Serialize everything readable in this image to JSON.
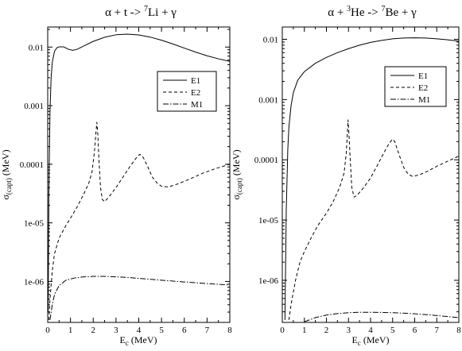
{
  "chart_data": [
    {
      "type": "line",
      "title": {
        "pre": "α  + t -> ",
        "sup": "7",
        "post": "Li + γ"
      },
      "xlabel": {
        "main": "E",
        "sub": "c",
        "rest": " (MeV)"
      },
      "ylabel": {
        "main": "σ",
        "sub": "(capt)",
        "rest": " (MeV)"
      },
      "xlim": [
        0,
        8
      ],
      "ylim": [
        2e-07,
        0.022
      ],
      "yscale": "log",
      "grid": false,
      "legend_position": "upper-right",
      "x_ticks": [
        0,
        1,
        2,
        3,
        4,
        5,
        6,
        7,
        8
      ],
      "y_ticks": [
        {
          "v": 0.01,
          "label": "0.01"
        },
        {
          "v": 0.001,
          "label": "0.001"
        },
        {
          "v": 0.0001,
          "label": "0.0001"
        },
        {
          "v": 1e-05,
          "label": "1e-05"
        },
        {
          "v": 1e-06,
          "label": "1e-06"
        }
      ],
      "series": [
        {
          "name": "E1",
          "dash": "solid",
          "points": [
            [
              0.02,
              3e-07
            ],
            [
              0.05,
              3e-05
            ],
            [
              0.1,
              0.0008
            ],
            [
              0.15,
              0.003
            ],
            [
              0.2,
              0.0055
            ],
            [
              0.3,
              0.0085
            ],
            [
              0.4,
              0.0097
            ],
            [
              0.5,
              0.0101
            ],
            [
              0.7,
              0.0101
            ],
            [
              0.9,
              0.0092
            ],
            [
              1.1,
              0.0088
            ],
            [
              1.3,
              0.0092
            ],
            [
              1.6,
              0.0105
            ],
            [
              2.0,
              0.0125
            ],
            [
              2.5,
              0.0147
            ],
            [
              3.0,
              0.0162
            ],
            [
              3.5,
              0.0166
            ],
            [
              4.0,
              0.0161
            ],
            [
              4.5,
              0.0148
            ],
            [
              5.0,
              0.0131
            ],
            [
              5.5,
              0.0113
            ],
            [
              6.0,
              0.0096
            ],
            [
              6.5,
              0.0082
            ],
            [
              7.0,
              0.0071
            ],
            [
              7.5,
              0.0063
            ],
            [
              8.0,
              0.0057
            ]
          ]
        },
        {
          "name": "E2",
          "dash": "dashed",
          "points": [
            [
              0.05,
              2.2e-07
            ],
            [
              0.1,
              5e-07
            ],
            [
              0.2,
              1.5e-06
            ],
            [
              0.3,
              3e-06
            ],
            [
              0.5,
              5.5e-06
            ],
            [
              0.8,
              9e-06
            ],
            [
              1.0,
              1.2e-05
            ],
            [
              1.3,
              1.9e-05
            ],
            [
              1.6,
              3.2e-05
            ],
            [
              1.8,
              4.7e-05
            ],
            [
              1.95,
              7.5e-05
            ],
            [
              2.05,
              0.00016
            ],
            [
              2.12,
              0.00035
            ],
            [
              2.16,
              0.00052
            ],
            [
              2.2,
              0.00033
            ],
            [
              2.25,
              0.00012
            ],
            [
              2.32,
              4e-05
            ],
            [
              2.4,
              2.5e-05
            ],
            [
              2.5,
              2.3e-05
            ],
            [
              2.7,
              2.8e-05
            ],
            [
              3.0,
              4e-05
            ],
            [
              3.3,
              6e-05
            ],
            [
              3.6,
              9e-05
            ],
            [
              3.9,
              0.00013
            ],
            [
              4.05,
              0.000148
            ],
            [
              4.2,
              0.00013
            ],
            [
              4.4,
              9e-05
            ],
            [
              4.6,
              6e-05
            ],
            [
              4.8,
              4.8e-05
            ],
            [
              5.0,
              4.2e-05
            ],
            [
              5.3,
              4.1e-05
            ],
            [
              5.7,
              4.6e-05
            ],
            [
              6.2,
              5.5e-05
            ],
            [
              6.8,
              7e-05
            ],
            [
              7.4,
              8.5e-05
            ],
            [
              8.0,
              0.0001
            ]
          ]
        },
        {
          "name": "M1",
          "dash": "dashdot",
          "points": [
            [
              0.1,
              2.2e-07
            ],
            [
              0.2,
              4e-07
            ],
            [
              0.3,
              6e-07
            ],
            [
              0.5,
              8.5e-07
            ],
            [
              0.8,
              1.05e-06
            ],
            [
              1.2,
              1.15e-06
            ],
            [
              1.6,
              1.2e-06
            ],
            [
              2.0,
              1.22e-06
            ],
            [
              2.5,
              1.22e-06
            ],
            [
              3.0,
              1.2e-06
            ],
            [
              3.5,
              1.17e-06
            ],
            [
              4.0,
              1.13e-06
            ],
            [
              5.0,
              1.05e-06
            ],
            [
              6.0,
              9.8e-07
            ],
            [
              7.0,
              9.2e-07
            ],
            [
              8.0,
              8.7e-07
            ]
          ]
        }
      ]
    },
    {
      "type": "line",
      "title": {
        "pre": "α  + ",
        "sup1": "3",
        "mid": "He -> ",
        "sup": "7",
        "post": "Be + γ"
      },
      "xlabel": {
        "main": "E",
        "sub": "c",
        "rest": " (MeV)"
      },
      "ylabel": {
        "main": "σ",
        "sub": "(capt)",
        "rest": " (MeV)"
      },
      "xlim": [
        0,
        8
      ],
      "ylim": [
        2e-07,
        0.016
      ],
      "yscale": "log",
      "grid": false,
      "legend_position": "upper-right",
      "x_ticks": [
        0,
        1,
        2,
        3,
        4,
        5,
        6,
        7,
        8
      ],
      "y_ticks": [
        {
          "v": 0.01,
          "label": "0.01"
        },
        {
          "v": 0.001,
          "label": "0.001"
        },
        {
          "v": 0.0001,
          "label": "0.0001"
        },
        {
          "v": 1e-05,
          "label": "1e-05"
        },
        {
          "v": 1e-06,
          "label": "1e-06"
        }
      ],
      "series": [
        {
          "name": "E1",
          "dash": "solid",
          "points": [
            [
              0.12,
              2.2e-07
            ],
            [
              0.18,
              1.5e-05
            ],
            [
              0.25,
              0.00015
            ],
            [
              0.3,
              0.00035
            ],
            [
              0.4,
              0.0008
            ],
            [
              0.5,
              0.0013
            ],
            [
              0.7,
              0.0021
            ],
            [
              1.0,
              0.0029
            ],
            [
              1.5,
              0.004
            ],
            [
              2.0,
              0.005
            ],
            [
              2.5,
              0.006
            ],
            [
              3.0,
              0.007
            ],
            [
              3.5,
              0.008
            ],
            [
              4.0,
              0.0089
            ],
            [
              4.5,
              0.0096
            ],
            [
              5.0,
              0.0102
            ],
            [
              5.5,
              0.0105
            ],
            [
              6.0,
              0.0106
            ],
            [
              6.5,
              0.0105
            ],
            [
              7.0,
              0.0102
            ],
            [
              7.5,
              0.0098
            ],
            [
              8.0,
              0.0093
            ]
          ]
        },
        {
          "name": "E2",
          "dash": "dashed",
          "points": [
            [
              0.3,
              2.2e-07
            ],
            [
              0.4,
              4e-07
            ],
            [
              0.6,
              1e-06
            ],
            [
              0.8,
              2e-06
            ],
            [
              1.0,
              3e-06
            ],
            [
              1.3,
              5e-06
            ],
            [
              1.6,
              8e-06
            ],
            [
              2.0,
              1.3e-05
            ],
            [
              2.3,
              2e-05
            ],
            [
              2.6,
              3.5e-05
            ],
            [
              2.8,
              6e-05
            ],
            [
              2.9,
              0.00013
            ],
            [
              2.95,
              0.00028
            ],
            [
              2.98,
              0.00046
            ],
            [
              3.02,
              0.00027
            ],
            [
              3.08,
              0.0001
            ],
            [
              3.15,
              3.5e-05
            ],
            [
              3.25,
              2.4e-05
            ],
            [
              3.4,
              2.6e-05
            ],
            [
              3.7,
              3.5e-05
            ],
            [
              4.0,
              5e-05
            ],
            [
              4.3,
              8e-05
            ],
            [
              4.6,
              0.00013
            ],
            [
              4.85,
              0.00019
            ],
            [
              5.0,
              0.00022
            ],
            [
              5.1,
              0.0002
            ],
            [
              5.3,
              0.00012
            ],
            [
              5.5,
              7.5e-05
            ],
            [
              5.7,
              5.8e-05
            ],
            [
              5.9,
              5.3e-05
            ],
            [
              6.2,
              5.6e-05
            ],
            [
              6.6,
              6.5e-05
            ],
            [
              7.0,
              7.8e-05
            ],
            [
              7.5,
              9.5e-05
            ],
            [
              8.0,
              0.000115
            ]
          ]
        },
        {
          "name": "M1",
          "dash": "dashdot",
          "points": [
            [
              1.0,
              2.05e-07
            ],
            [
              1.5,
              2.4e-07
            ],
            [
              2.0,
              2.65e-07
            ],
            [
              2.5,
              2.8e-07
            ],
            [
              3.0,
              2.9e-07
            ],
            [
              3.5,
              2.95e-07
            ],
            [
              4.0,
              2.95e-07
            ],
            [
              4.5,
              2.93e-07
            ],
            [
              5.0,
              2.9e-07
            ],
            [
              5.5,
              2.85e-07
            ],
            [
              6.0,
              2.78e-07
            ],
            [
              6.5,
              2.7e-07
            ],
            [
              7.0,
              2.6e-07
            ],
            [
              7.5,
              2.5e-07
            ],
            [
              8.0,
              2.4e-07
            ]
          ]
        }
      ]
    }
  ]
}
